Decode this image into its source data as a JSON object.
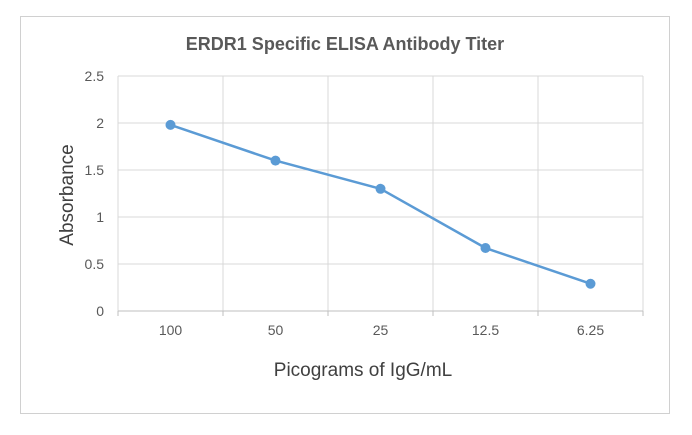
{
  "chart_data": {
    "type": "line",
    "title": "ERDR1 Specific ELISA Antibody Titer",
    "xlabel": "Picograms of IgG/mL",
    "ylabel": "Absorbance",
    "categories": [
      "100",
      "50",
      "25",
      "12.5",
      "6.25"
    ],
    "series": [
      {
        "name": "Absorbance",
        "values": [
          1.98,
          1.6,
          1.3,
          0.67,
          0.29
        ]
      }
    ],
    "ylim": [
      0,
      2.5
    ],
    "yticks": [
      "0",
      "0.5",
      "1",
      "1.5",
      "2",
      "2.5"
    ],
    "grid": true,
    "colors": {
      "line": "#5B9BD5",
      "grid": "#D9D9D9",
      "axis": "#BFBFBF"
    }
  }
}
